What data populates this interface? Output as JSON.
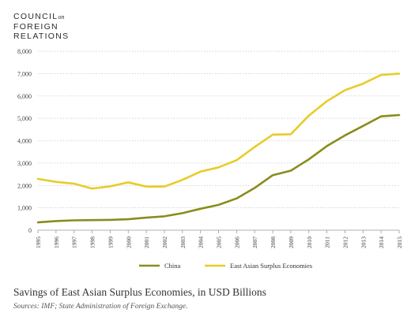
{
  "logo": {
    "line1": "COUNCIL",
    "on": "on",
    "line2": "FOREIGN",
    "line3": "RELATIONS"
  },
  "caption": "Savings of East Asian Surplus Economies, in USD Billions",
  "sources": "Sources: IMF; State Administration of Foreign Exchange.",
  "chart_data": {
    "type": "line",
    "title": "",
    "xlabel": "",
    "ylabel": "",
    "x": [
      1995,
      1996,
      1997,
      1998,
      1999,
      2000,
      2001,
      2002,
      2003,
      2004,
      2005,
      2006,
      2007,
      2008,
      2009,
      2010,
      2011,
      2012,
      2013,
      2014,
      2015
    ],
    "ylim": [
      0,
      8000
    ],
    "yticks": [
      0,
      1000,
      2000,
      3000,
      4000,
      5000,
      6000,
      7000,
      8000
    ],
    "ytick_labels": [
      "0",
      "1,000",
      "2,000",
      "3,000",
      "4,000",
      "5,000",
      "6,000",
      "7,000",
      "8,000"
    ],
    "grid": "horizontal dotted",
    "legend_position": "bottom",
    "series": [
      {
        "name": "China",
        "color": "#8a8c1c",
        "values": [
          350,
          410,
          440,
          450,
          460,
          490,
          560,
          620,
          760,
          960,
          1130,
          1420,
          1890,
          2460,
          2660,
          3170,
          3760,
          4240,
          4660,
          5090,
          5150
        ]
      },
      {
        "name": "East Asian Surplus Economies",
        "color": "#e8cc2a",
        "values": [
          2290,
          2160,
          2080,
          1860,
          1960,
          2140,
          1950,
          1950,
          2250,
          2620,
          2810,
          3130,
          3720,
          4270,
          4290,
          5120,
          5770,
          6260,
          6550,
          6940,
          7000
        ]
      }
    ]
  }
}
